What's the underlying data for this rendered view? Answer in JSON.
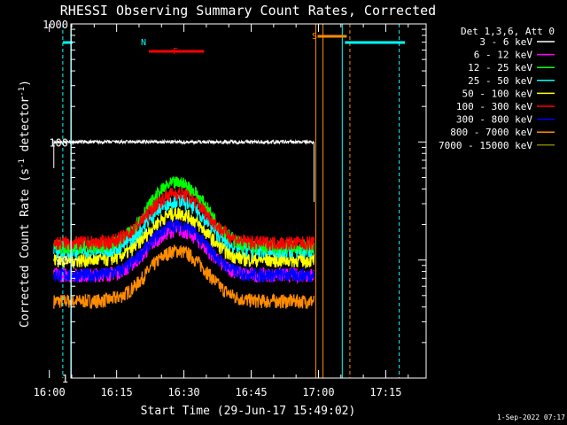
{
  "chart_data": {
    "type": "line",
    "title": "RHESSI Observing Summary Count Rates, Corrected",
    "xlabel": "Start Time (29-Jun-17 15:49:02)",
    "ylabel_main": "Corrected Count Rate (s",
    "ylabel_sup1": "-1",
    "ylabel_mid": " detector",
    "ylabel_sup2": "-1",
    "ylabel_end": ")",
    "yscale": "log",
    "ylim": [
      1,
      1000
    ],
    "xlim_minutes": [
      15.8,
      95.0
    ],
    "x_ticks": [
      {
        "label": "16:00",
        "minutes": 11.0
      },
      {
        "label": "16:15",
        "minutes": 26.0
      },
      {
        "label": "16:30",
        "minutes": 41.0
      },
      {
        "label": "16:45",
        "minutes": 56.0
      },
      {
        "label": "17:00",
        "minutes": 71.0
      },
      {
        "label": "17:15",
        "minutes": 86.0
      }
    ],
    "y_ticks": [
      {
        "label": "1",
        "value": 1
      },
      {
        "label": "10",
        "value": 10
      },
      {
        "label": "100",
        "value": 100
      },
      {
        "label": "1000",
        "value": 1000
      }
    ],
    "legend_title": "Det 1,3,6, Att 0",
    "legend_placement": "right",
    "data_window_minutes": [
      12.0,
      70.0
    ],
    "peak_minutes": 39.5,
    "series": [
      {
        "name": "3 - 6 keV",
        "color": "#ffffff",
        "base": 100,
        "peak": 100
      },
      {
        "name": "6 - 12 keV",
        "color": "#ff00ff",
        "base": 7.5,
        "peak": 18
      },
      {
        "name": "12 - 25 keV",
        "color": "#00ff00",
        "base": 13,
        "peak": 45
      },
      {
        "name": "25 - 50 keV",
        "color": "#00ffff",
        "base": 12,
        "peak": 32
      },
      {
        "name": "50 - 100 keV",
        "color": "#ffff00",
        "base": 10,
        "peak": 25
      },
      {
        "name": "100 - 300 keV",
        "color": "#ff0000",
        "base": 14,
        "peak": 37
      },
      {
        "name": "300 - 800 keV",
        "color": "#0000ff",
        "base": 7.5,
        "peak": 20
      },
      {
        "name": "800 - 7000 keV",
        "color": "#ff8c00",
        "base": 4.5,
        "peak": 12
      },
      {
        "name": "7000 - 15000 keV",
        "color": "#808000",
        "base": 1,
        "peak": 1
      }
    ],
    "annotations": [
      {
        "label": "N",
        "color": "#00ffff"
      },
      {
        "label": "F",
        "color": "#ff0000"
      },
      {
        "label": "S",
        "color": "#ff8c00"
      }
    ]
  },
  "footer_date": "1-Sep-2022 07:17"
}
